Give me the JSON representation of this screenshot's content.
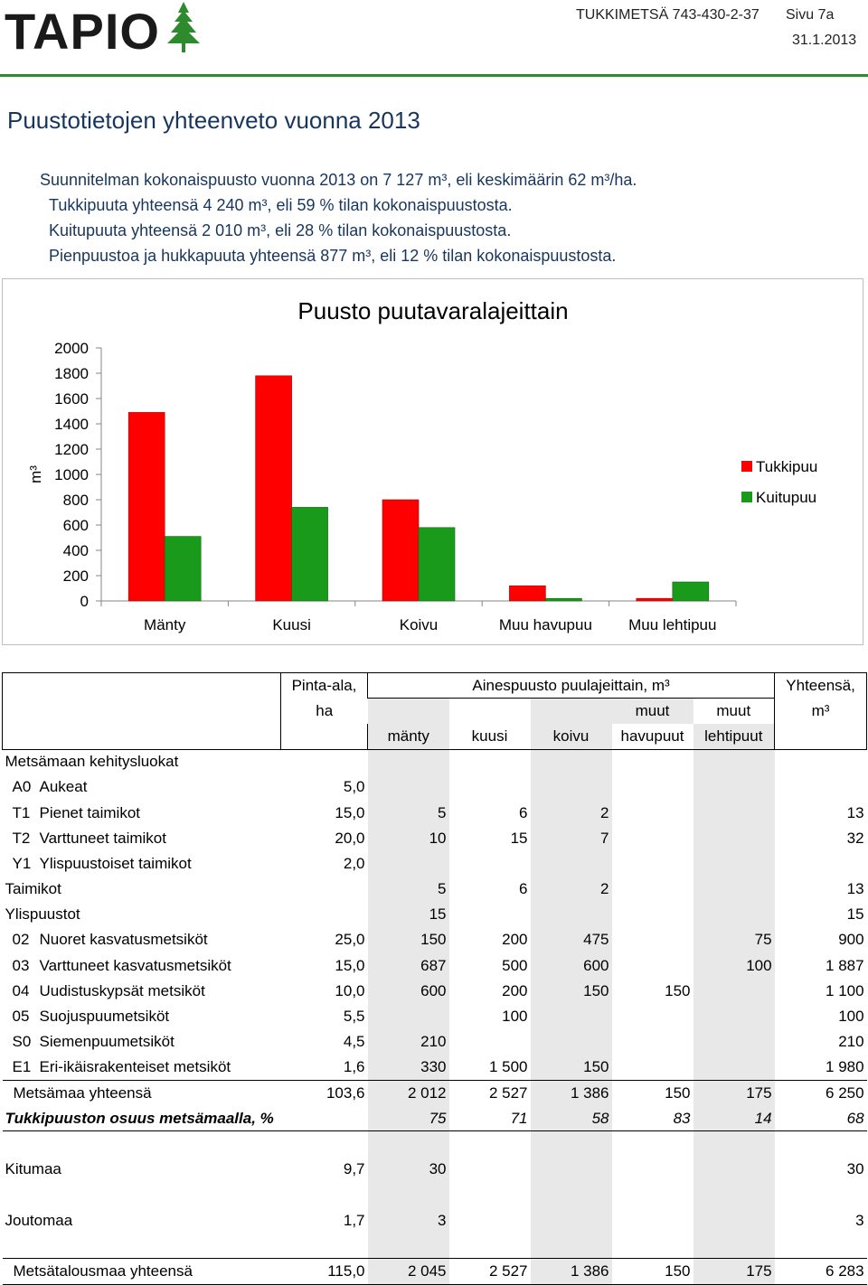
{
  "header": {
    "logo": "TAPIO",
    "doc_id": "TUKKIMETSÄ 743-430-2-37",
    "page": "Sivu 7a",
    "date": "31.1.2013",
    "accent_color": "#2d8a2d"
  },
  "title": "Puustotietojen yhteenveto vuonna 2013",
  "summary": [
    "Suunnitelman kokonaispuusto vuonna 2013 on 7 127 m³, eli keskimäärin 62 m³/ha.",
    "Tukkipuuta yhteensä 4 240 m³, eli 59 % tilan kokonaispuustosta.",
    "Kuitupuuta yhteensä 2 010 m³, eli 28 % tilan kokonaispuustosta.",
    "Pienpuustoa ja hukkapuuta yhteensä 877 m³, eli 12 % tilan kokonaispuustosta."
  ],
  "chart_data": {
    "type": "bar",
    "title": "Puusto puutavaralajeittain",
    "ylabel": "m³",
    "xlabel": "",
    "ylim": [
      0,
      2000
    ],
    "yticks": [
      0,
      200,
      400,
      600,
      800,
      1000,
      1200,
      1400,
      1600,
      1800,
      2000
    ],
    "categories": [
      "Mänty",
      "Kuusi",
      "Koivu",
      "Muu havupuu",
      "Muu lehtipuu"
    ],
    "series": [
      {
        "name": "Tukkipuu",
        "color": "#ff0000",
        "values": [
          1490,
          1780,
          800,
          120,
          20
        ]
      },
      {
        "name": "Kuitupuu",
        "color": "#1a9a1a",
        "values": [
          510,
          740,
          580,
          20,
          150
        ]
      }
    ],
    "legend": "right",
    "grid": false
  },
  "table": {
    "head": {
      "area": [
        "Pinta-ala,",
        "ha"
      ],
      "species_group": "Ainespuusto puulajeittain, m³",
      "species": [
        "mänty",
        "kuusi",
        "koivu",
        [
          "muut",
          "havupuut"
        ],
        [
          "muut",
          "lehtipuut"
        ]
      ],
      "total": [
        "Yhteensä,",
        "m³"
      ]
    },
    "section_label": "Metsämaan kehitysluokat",
    "rows": [
      {
        "code": "A0",
        "label": "Aukeat",
        "area": "5,0",
        "v": [
          "",
          "",
          "",
          "",
          ""
        ],
        "total": ""
      },
      {
        "code": "T1",
        "label": "Pienet taimikot",
        "area": "15,0",
        "v": [
          "5",
          "6",
          "2",
          "",
          ""
        ],
        "total": "13"
      },
      {
        "code": "T2",
        "label": "Varttuneet taimikot",
        "area": "20,0",
        "v": [
          "10",
          "15",
          "7",
          "",
          ""
        ],
        "total": "32"
      },
      {
        "code": "Y1",
        "label": "Ylispuustoiset taimikot",
        "area": "2,0",
        "v": [
          "",
          "",
          "",
          "",
          ""
        ],
        "total": ""
      },
      {
        "code": "",
        "label": "Taimikot",
        "area": "",
        "v": [
          "5",
          "6",
          "2",
          "",
          ""
        ],
        "total": "13",
        "sub": true
      },
      {
        "code": "",
        "label": "Ylispuustot",
        "area": "",
        "v": [
          "15",
          "",
          "",
          "",
          ""
        ],
        "total": "15",
        "sub": true
      },
      {
        "code": "02",
        "label": "Nuoret kasvatusmetsiköt",
        "area": "25,0",
        "v": [
          "150",
          "200",
          "475",
          "",
          "75"
        ],
        "total": "900"
      },
      {
        "code": "03",
        "label": "Varttuneet kasvatusmetsiköt",
        "area": "15,0",
        "v": [
          "687",
          "500",
          "600",
          "",
          "100"
        ],
        "total": "1 887"
      },
      {
        "code": "04",
        "label": "Uudistuskypsät metsiköt",
        "area": "10,0",
        "v": [
          "600",
          "200",
          "150",
          "150",
          ""
        ],
        "total": "1 100"
      },
      {
        "code": "05",
        "label": "Suojuspuumetsiköt",
        "area": "5,5",
        "v": [
          "",
          "100",
          "",
          "",
          ""
        ],
        "total": "100"
      },
      {
        "code": "S0",
        "label": "Siemenpuumetsiköt",
        "area": "4,5",
        "v": [
          "210",
          "",
          "",
          "",
          ""
        ],
        "total": "210"
      },
      {
        "code": "E1",
        "label": "Eri-ikäisrakenteiset metsiköt",
        "area": "1,6",
        "v": [
          "330",
          "1 500",
          "150",
          "",
          ""
        ],
        "total": "1 980"
      }
    ],
    "forest_total": {
      "label": "Metsämaa yhteensä",
      "area": "103,6",
      "v": [
        "2 012",
        "2 527",
        "1 386",
        "150",
        "175"
      ],
      "total": "6 250"
    },
    "share": {
      "label": "Tukkipuuston osuus metsämaalla, %",
      "v": [
        "75",
        "71",
        "58",
        "83",
        "14"
      ],
      "total": "68"
    },
    "kitumaa": {
      "label": "Kitumaa",
      "area": "9,7",
      "v": [
        "30",
        "",
        "",
        "",
        ""
      ],
      "total": "30"
    },
    "joutomaa": {
      "label": "Joutomaa",
      "area": "1,7",
      "v": [
        "3",
        "",
        "",
        "",
        ""
      ],
      "total": "3"
    },
    "grand_total": {
      "label": "Metsätalousmaa yhteensä",
      "area": "115,0",
      "v": [
        "2 045",
        "2 527",
        "1 386",
        "150",
        "175"
      ],
      "total": "6 283"
    }
  }
}
